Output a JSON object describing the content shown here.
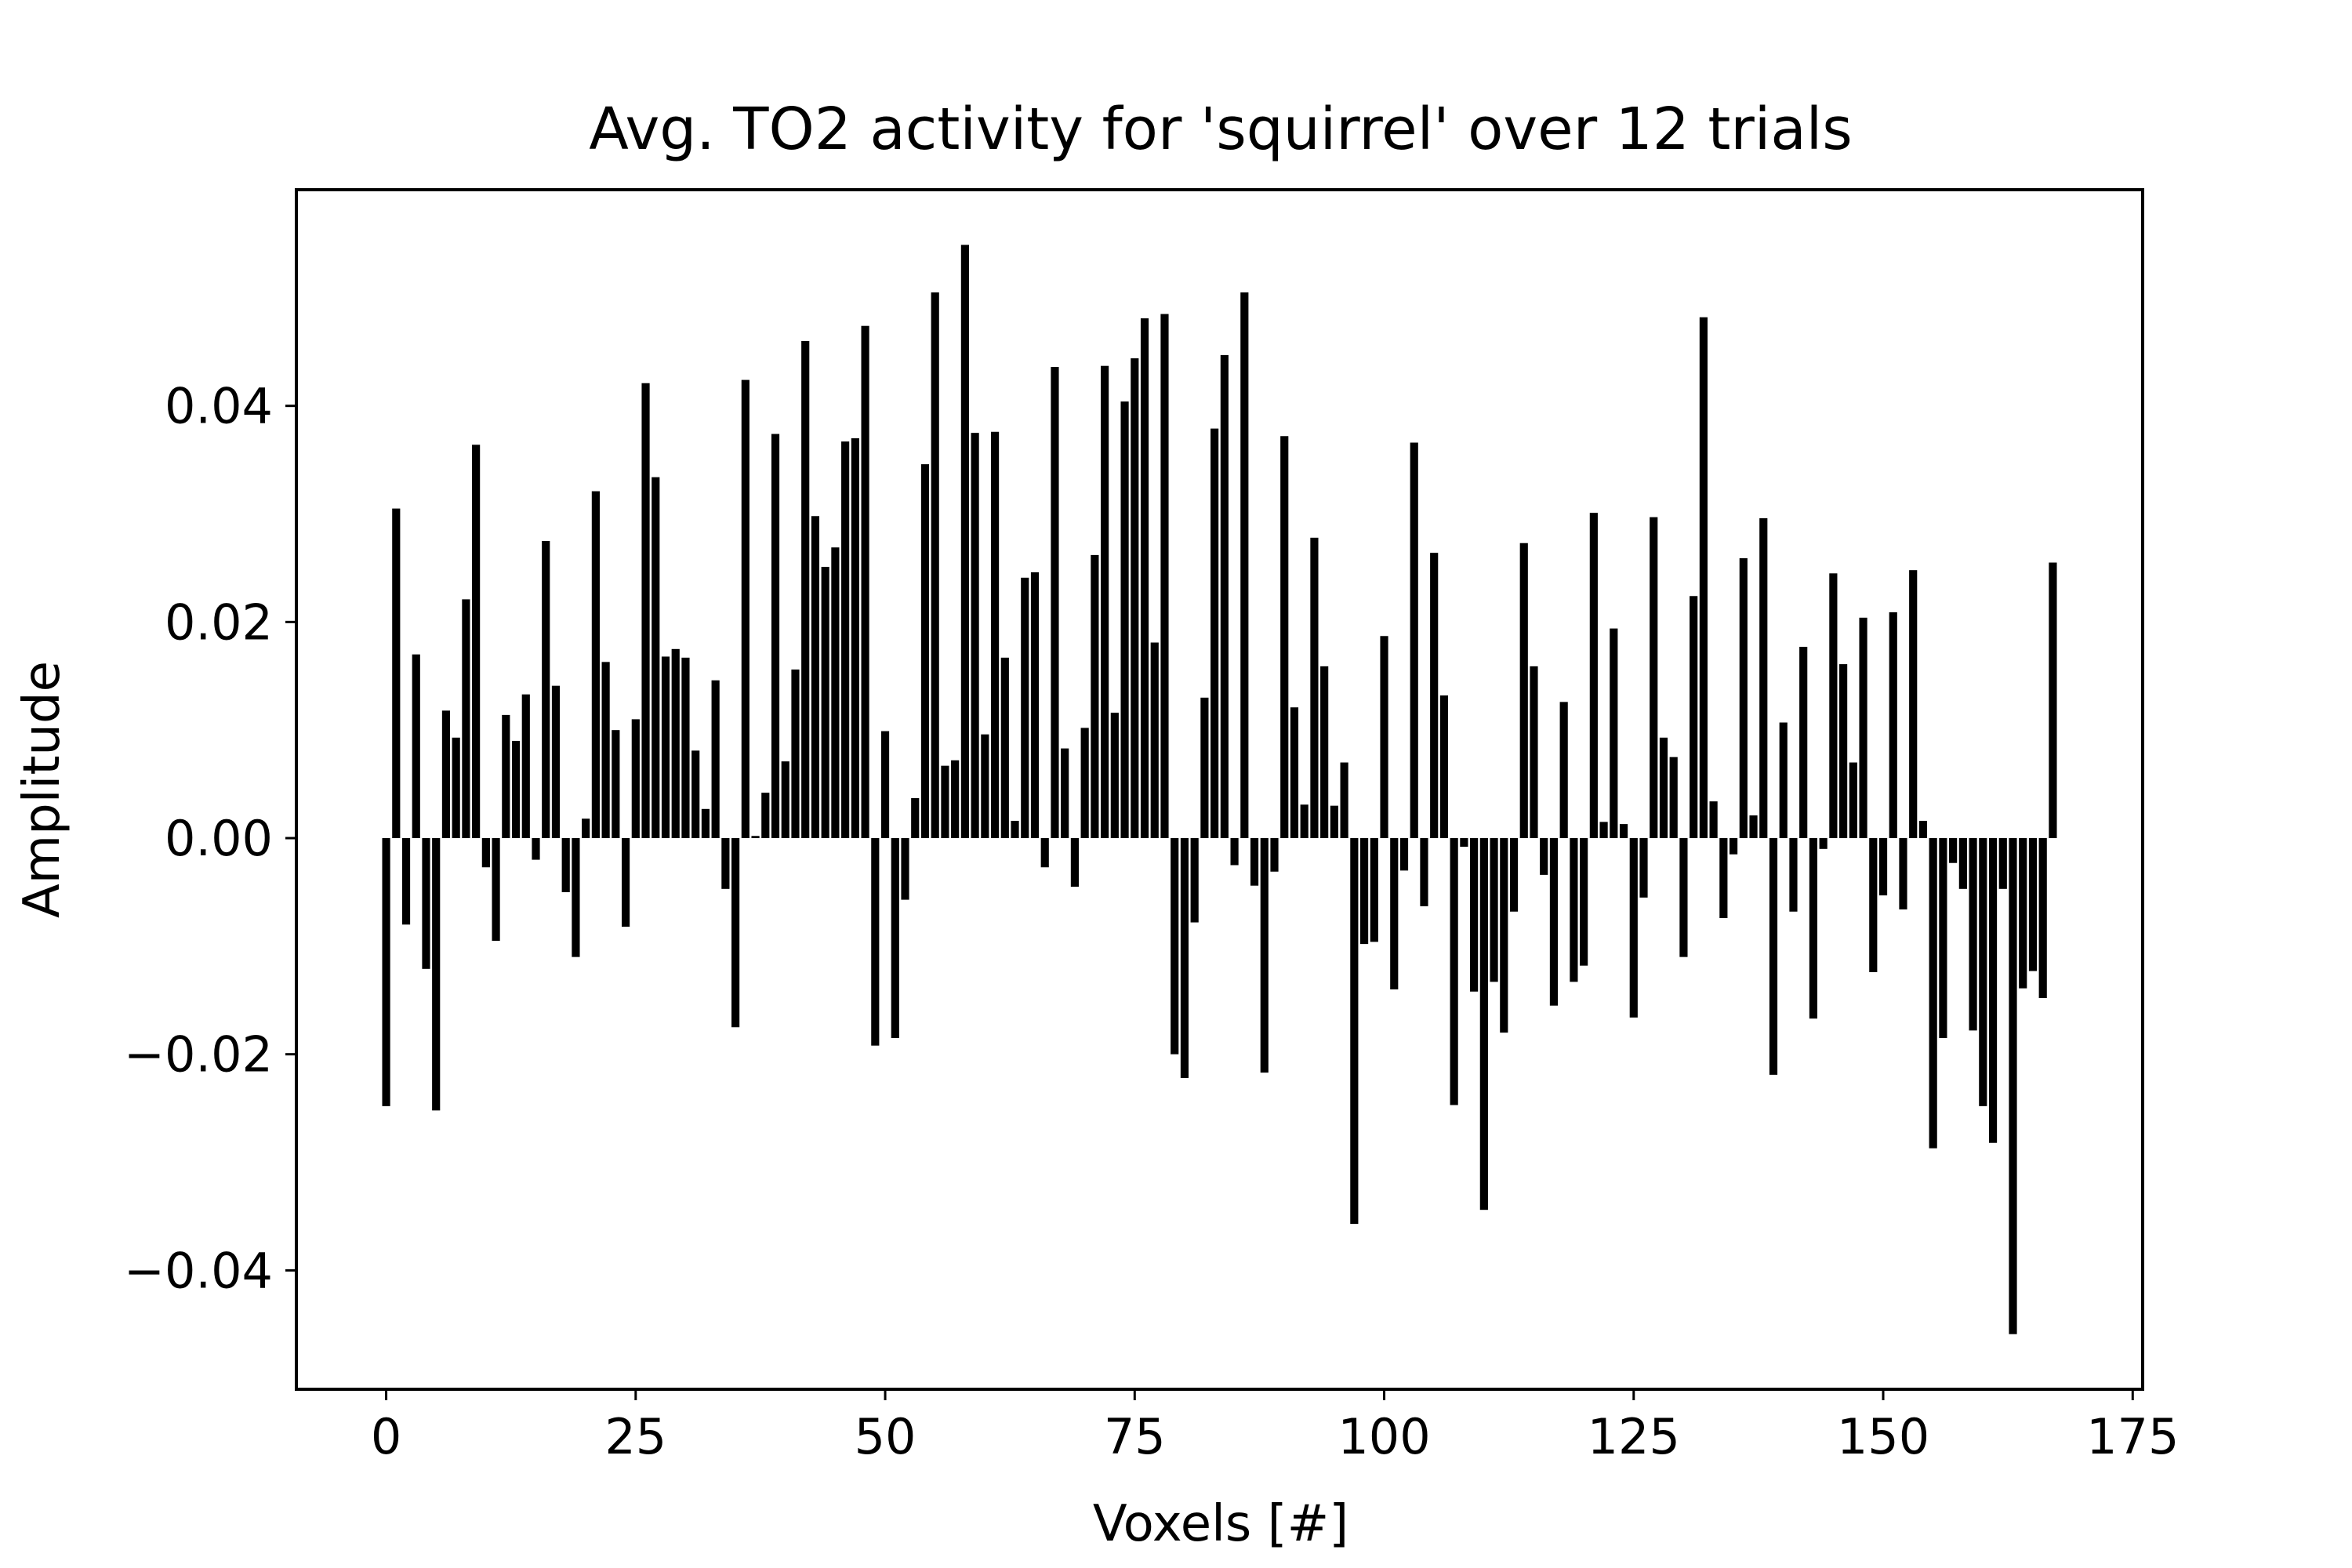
{
  "chart_data": {
    "type": "bar",
    "title": "Avg. TO2 activity for 'squirrel' over 12 trials",
    "xlabel": "Voxels [#]",
    "ylabel": "Amplitude",
    "xlim": [
      -9,
      176
    ],
    "ylim": [
      -0.051,
      0.06
    ],
    "grid": false,
    "bar_color": "#000000",
    "x_ticks": [
      0,
      25,
      50,
      75,
      100,
      125,
      150,
      175
    ],
    "x_tick_labels": [
      "0",
      "25",
      "50",
      "75",
      "100",
      "125",
      "150",
      "175"
    ],
    "y_ticks": [
      -0.04,
      -0.02,
      0.0,
      0.02,
      0.04
    ],
    "y_tick_labels": [
      "−0.04",
      "−0.02",
      "0.00",
      "0.02",
      "0.04"
    ],
    "values": [
      -0.0248,
      0.0305,
      -0.008,
      0.017,
      -0.0121,
      -0.0252,
      0.0118,
      0.0093,
      0.0221,
      0.0364,
      -0.0027,
      -0.0095,
      0.0114,
      0.009,
      0.0133,
      -0.002,
      0.0275,
      0.0141,
      -0.005,
      -0.011,
      0.0018,
      0.0321,
      0.0163,
      0.01,
      -0.0082,
      0.011,
      0.0421,
      0.0334,
      0.0168,
      0.0175,
      0.0167,
      0.0081,
      0.0027,
      0.0146,
      -0.0047,
      -0.0175,
      0.0424,
      0.0002,
      0.0042,
      0.0374,
      0.0071,
      0.0156,
      0.046,
      0.0298,
      0.0251,
      0.0269,
      0.0367,
      0.037,
      0.0474,
      -0.0192,
      0.0099,
      -0.0185,
      -0.0057,
      0.0037,
      0.0346,
      0.0505,
      0.0067,
      0.0072,
      0.0549,
      0.0375,
      0.0096,
      0.0376,
      0.0167,
      0.0016,
      0.0241,
      0.0246,
      -0.0027,
      0.0436,
      0.0083,
      -0.0045,
      0.0102,
      0.0262,
      0.0437,
      0.0116,
      0.0404,
      0.0444,
      0.0481,
      0.0181,
      0.0485,
      -0.02,
      -0.0222,
      -0.0078,
      0.013,
      0.0379,
      0.0447,
      -0.0025,
      0.0505,
      -0.0044,
      -0.0217,
      -0.0031,
      0.0372,
      0.0121,
      0.0031,
      0.0278,
      0.0159,
      0.003,
      0.007,
      -0.0357,
      -0.0098,
      -0.0096,
      0.0187,
      -0.014,
      -0.003,
      0.0366,
      -0.0063,
      0.0264,
      0.0132,
      -0.0247,
      -0.0008,
      -0.0142,
      -0.0344,
      -0.0133,
      -0.018,
      -0.0068,
      0.0273,
      0.0159,
      -0.0034,
      -0.0155,
      0.0126,
      -0.0133,
      -0.0118,
      0.0301,
      0.0015,
      0.0194,
      0.0013,
      -0.0166,
      -0.0055,
      0.0297,
      0.0093,
      0.0075,
      -0.011,
      0.0224,
      0.0482,
      0.0034,
      -0.0074,
      -0.0015,
      0.0259,
      0.0021,
      0.0296,
      -0.0219,
      0.0107,
      -0.0068,
      0.0177,
      -0.0167,
      -0.001,
      0.0245,
      0.0161,
      0.007,
      0.0204,
      -0.0124,
      -0.0053,
      0.0209,
      -0.0066,
      0.0248,
      0.0016,
      -0.0287,
      -0.0185,
      -0.0023,
      -0.0047,
      -0.0178,
      -0.0248,
      -0.0282,
      -0.0047,
      -0.0459,
      -0.0139,
      -0.0123,
      -0.0148,
      0.0255
    ]
  }
}
